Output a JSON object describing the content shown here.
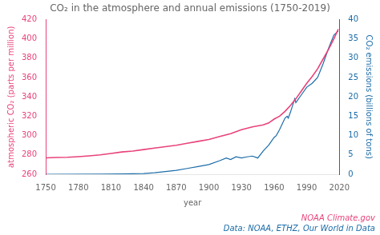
{
  "chart_data": {
    "type": "line",
    "title": "CO₂ in the atmosphere and annual emissions (1750-2019)",
    "xlabel": "year",
    "ylabel": "atmospheric CO₂ (parts per million)",
    "y2label": "CO₂ emissions (billions of tons)",
    "xlim": [
      1750,
      2020
    ],
    "xticks": [
      1750,
      1780,
      1810,
      1840,
      1870,
      1900,
      1930,
      1960,
      1990,
      2020
    ],
    "ylim": [
      260,
      420
    ],
    "yticks": [
      260,
      280,
      300,
      320,
      340,
      360,
      380,
      400,
      420
    ],
    "y2lim": [
      0,
      40
    ],
    "y2ticks": [
      0,
      5,
      10,
      15,
      20,
      25,
      30,
      35,
      40
    ],
    "grid": false,
    "series": [
      {
        "color": "#e8437a",
        "x": [
          1750,
          1760,
          1770,
          1780,
          1790,
          1800,
          1810,
          1820,
          1830,
          1840,
          1850,
          1860,
          1870,
          1880,
          1890,
          1900,
          1910,
          1920,
          1930,
          1940,
          1950,
          1955,
          1960,
          1965,
          1970,
          1975,
          1980,
          1985,
          1990,
          1995,
          2000,
          2005,
          2010,
          2015,
          2019
        ],
        "values": [
          277,
          277.3,
          277.6,
          278.2,
          279,
          280,
          281.5,
          283,
          284,
          285.5,
          287,
          288.5,
          290,
          292,
          294,
          296,
          299,
          302,
          306,
          309,
          311,
          313,
          317,
          320,
          325,
          331,
          338,
          346,
          354,
          361,
          369,
          379,
          389,
          400,
          410
        ]
      },
      {
        "color": "#1b6ca8",
        "axis": "y2",
        "x": [
          1750,
          1800,
          1820,
          1840,
          1850,
          1860,
          1870,
          1880,
          1890,
          1900,
          1910,
          1916,
          1920,
          1925,
          1930,
          1935,
          1940,
          1945,
          1950,
          1955,
          1960,
          1962,
          1965,
          1970,
          1972,
          1973,
          1975,
          1979,
          1980,
          1985,
          1990,
          1995,
          2000,
          2005,
          2010,
          2015,
          2019
        ],
        "values": [
          0.003,
          0.02,
          0.06,
          0.2,
          0.4,
          0.7,
          1.0,
          1.5,
          2.0,
          2.5,
          3.5,
          4.2,
          3.8,
          4.5,
          4.2,
          4.5,
          4.7,
          4.2,
          6.0,
          7.5,
          9.5,
          10.0,
          11.5,
          14.5,
          15.0,
          14.5,
          16.0,
          19.5,
          18.5,
          20.5,
          22.5,
          23.5,
          25.0,
          28.5,
          32.5,
          36.0,
          37.0
        ]
      }
    ],
    "annotations": [
      {
        "text": "NOAA Climate.gov",
        "color": "#e8437a"
      },
      {
        "text": "Data: NOAA, ETHZ, Our World in Data",
        "color": "#1b6ca8"
      }
    ]
  }
}
